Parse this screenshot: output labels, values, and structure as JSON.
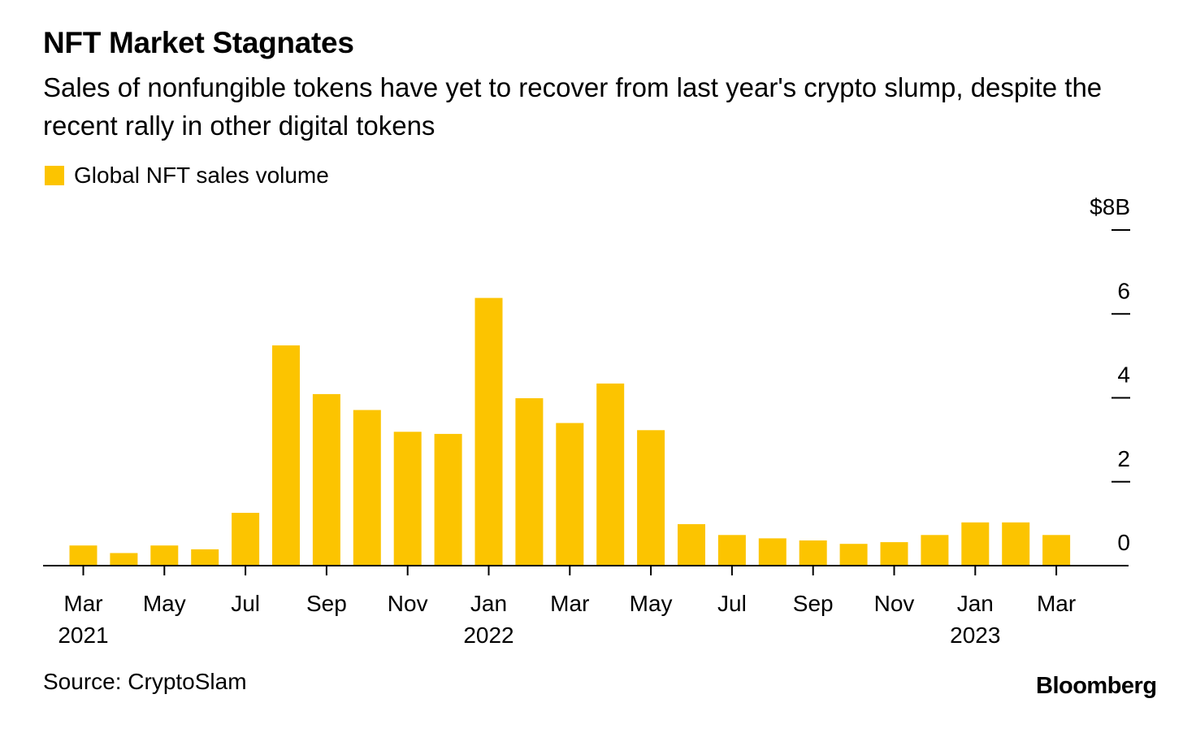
{
  "header": {
    "title": "NFT Market Stagnates",
    "subtitle": "Sales of nonfungible tokens have yet to recover from last year's crypto slump, despite the recent rally in other digital tokens"
  },
  "legend": {
    "label": "Global NFT sales volume",
    "color": "#FCC400"
  },
  "footer": {
    "source": "Source: CryptoSlam",
    "brand": "Bloomberg"
  },
  "colors": {
    "bar": "#FCC400",
    "axis": "#000000",
    "text": "#000000"
  },
  "chart_data": {
    "type": "bar",
    "title": "NFT Market Stagnates",
    "subtitle": "Sales of nonfungible tokens have yet to recover from last year's crypto slump, despite the recent rally in other digital tokens",
    "xlabel": "",
    "ylabel": "",
    "ylim": [
      0,
      8
    ],
    "yticks": [
      {
        "value": 0,
        "label": "0"
      },
      {
        "value": 2,
        "label": "2"
      },
      {
        "value": 4,
        "label": "4"
      },
      {
        "value": 6,
        "label": "6"
      },
      {
        "value": 8,
        "label": "$8B"
      }
    ],
    "y_axis_position": "right",
    "grid": false,
    "legend_position": "top-left",
    "categories": [
      "2021-03",
      "2021-04",
      "2021-05",
      "2021-06",
      "2021-07",
      "2021-08",
      "2021-09",
      "2021-10",
      "2021-11",
      "2021-12",
      "2022-01",
      "2022-02",
      "2022-03",
      "2022-04",
      "2022-05",
      "2022-06",
      "2022-07",
      "2022-08",
      "2022-09",
      "2022-10",
      "2022-11",
      "2022-12",
      "2023-01",
      "2023-02",
      "2023-03"
    ],
    "series": [
      {
        "name": "Global NFT sales volume",
        "values": [
          0.48,
          0.3,
          0.48,
          0.39,
          1.26,
          5.25,
          4.09,
          3.71,
          3.19,
          3.14,
          6.38,
          3.99,
          3.4,
          4.34,
          3.23,
          0.99,
          0.73,
          0.65,
          0.6,
          0.52,
          0.56,
          0.73,
          1.03,
          1.03,
          0.73
        ]
      }
    ],
    "xticks": [
      {
        "index": 0,
        "month": "Mar",
        "year": "2021"
      },
      {
        "index": 2,
        "month": "May",
        "year": ""
      },
      {
        "index": 4,
        "month": "Jul",
        "year": ""
      },
      {
        "index": 6,
        "month": "Sep",
        "year": ""
      },
      {
        "index": 8,
        "month": "Nov",
        "year": ""
      },
      {
        "index": 10,
        "month": "Jan",
        "year": "2022"
      },
      {
        "index": 12,
        "month": "Mar",
        "year": ""
      },
      {
        "index": 14,
        "month": "May",
        "year": ""
      },
      {
        "index": 16,
        "month": "Jul",
        "year": ""
      },
      {
        "index": 18,
        "month": "Sep",
        "year": ""
      },
      {
        "index": 20,
        "month": "Nov",
        "year": ""
      },
      {
        "index": 22,
        "month": "Jan",
        "year": "2023"
      },
      {
        "index": 24,
        "month": "Mar",
        "year": ""
      }
    ]
  }
}
